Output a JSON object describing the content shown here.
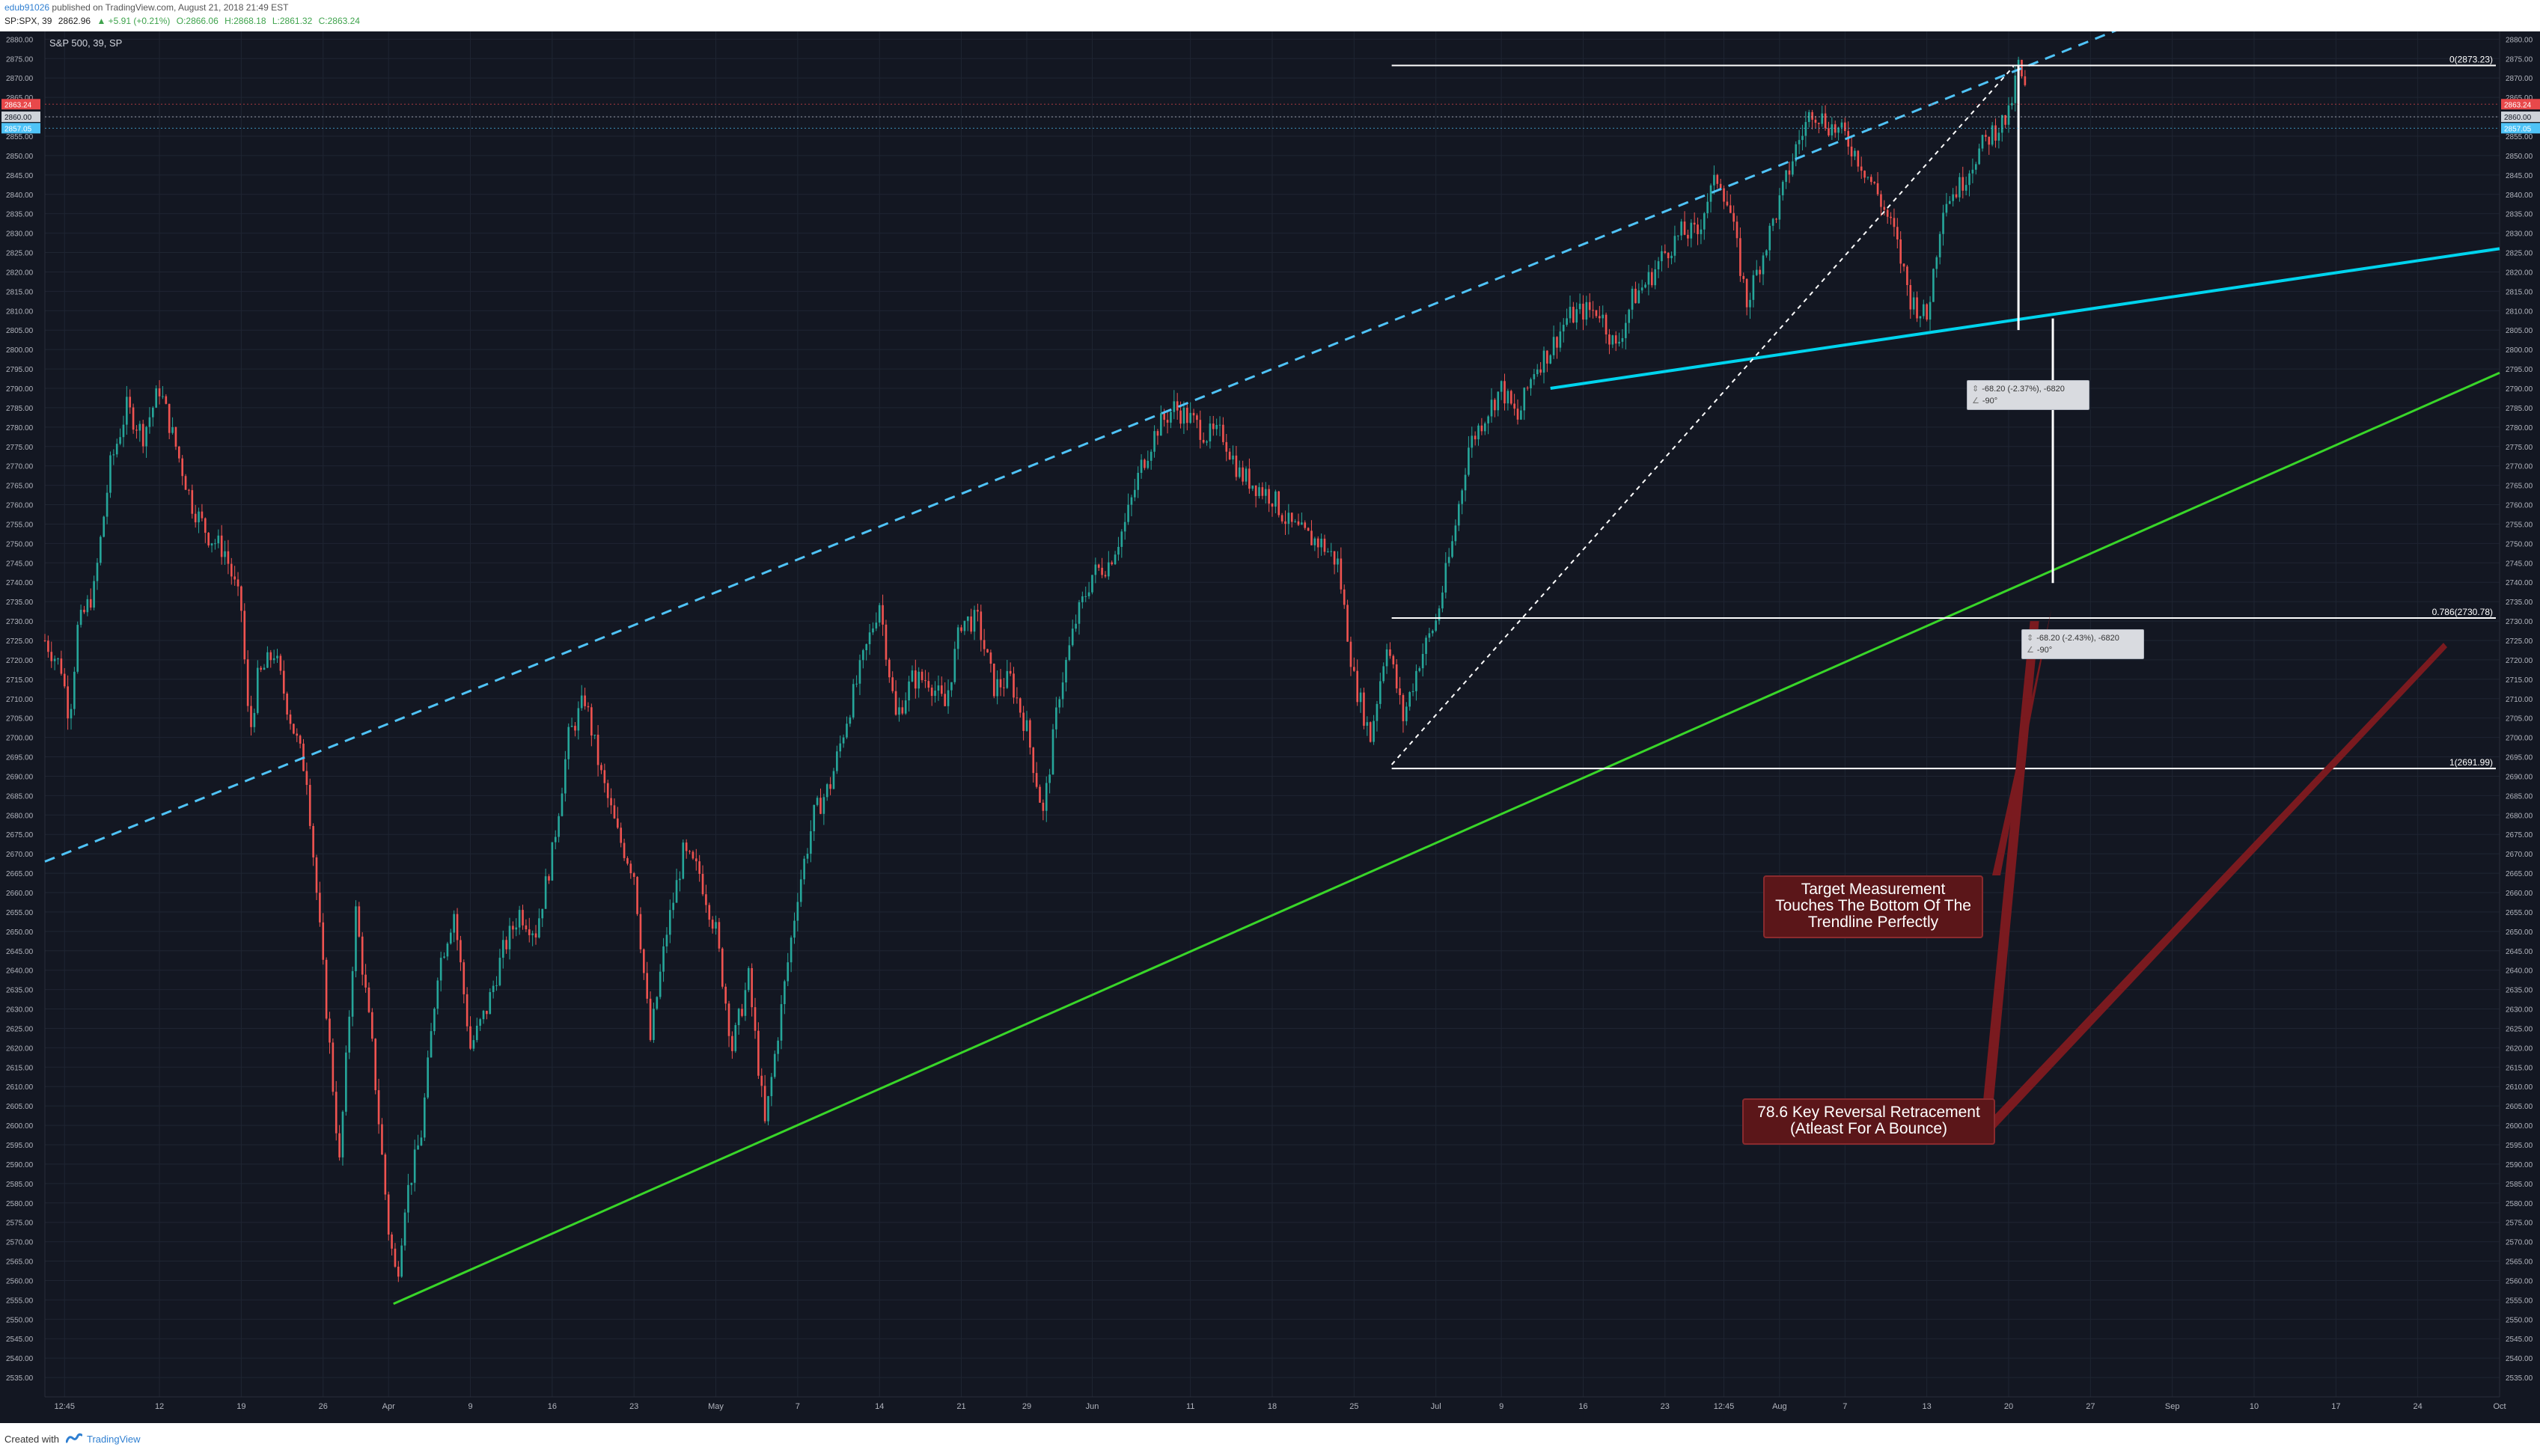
{
  "header": {
    "publisher": "edub91026",
    "published_text": "published on TradingView.com, August 21, 2018 21:49 EST",
    "symbol": "SP:SPX, 39",
    "last": "2862.96",
    "change": "▲ +5.91 (+0.21%)",
    "open": "O:2866.06",
    "high": "H:2868.18",
    "low": "L:2861.32",
    "close": "C:2863.24"
  },
  "footer": {
    "created_with": "Created with",
    "brand": "TradingView"
  },
  "colors": {
    "background": "#131722",
    "grid": "#1f2532",
    "up_candle": "#26a69a",
    "down_candle": "#ef5350",
    "channel_dashed": "#4fc3f7",
    "trendline_cyan": "#00d4ee",
    "trendline_green": "#39d629",
    "callout_arrow": "#7a1a1f",
    "callout_bg": "#5b1619",
    "price_badge_red": "#e8484a",
    "price_badge_gray": "#cfd3da",
    "price_badge_blue": "#4fc3f7"
  },
  "chart_data": {
    "type": "candlestick",
    "title": "S&P 500, 39, SP",
    "xlabel": "",
    "ylabel": "",
    "ylim": [
      2530,
      2882
    ],
    "y_ticks": [
      2535,
      2540,
      2545,
      2550,
      2555,
      2560,
      2565,
      2570,
      2575,
      2580,
      2585,
      2590,
      2595,
      2600,
      2605,
      2610,
      2615,
      2620,
      2625,
      2630,
      2635,
      2640,
      2645,
      2650,
      2655,
      2660,
      2665,
      2670,
      2675,
      2680,
      2685,
      2690,
      2695,
      2700,
      2705,
      2710,
      2715,
      2720,
      2725,
      2730,
      2735,
      2740,
      2745,
      2750,
      2755,
      2760,
      2765,
      2770,
      2775,
      2780,
      2785,
      2790,
      2795,
      2800,
      2805,
      2810,
      2815,
      2820,
      2825,
      2830,
      2835,
      2840,
      2845,
      2850,
      2855,
      2860,
      2865,
      2870,
      2875,
      2880
    ],
    "x_domain": [
      0,
      150
    ],
    "x_ticks": [
      {
        "label": "12:45",
        "t": 1.2
      },
      {
        "label": "12",
        "t": 7
      },
      {
        "label": "19",
        "t": 12
      },
      {
        "label": "26",
        "t": 17
      },
      {
        "label": "Apr",
        "t": 21
      },
      {
        "label": "9",
        "t": 26
      },
      {
        "label": "16",
        "t": 31
      },
      {
        "label": "23",
        "t": 36
      },
      {
        "label": "May",
        "t": 41
      },
      {
        "label": "7",
        "t": 46
      },
      {
        "label": "14",
        "t": 51
      },
      {
        "label": "21",
        "t": 56
      },
      {
        "label": "29",
        "t": 60
      },
      {
        "label": "Jun",
        "t": 64
      },
      {
        "label": "11",
        "t": 70
      },
      {
        "label": "18",
        "t": 75
      },
      {
        "label": "25",
        "t": 80
      },
      {
        "label": "Jul",
        "t": 85
      },
      {
        "label": "9",
        "t": 89
      },
      {
        "label": "16",
        "t": 94
      },
      {
        "label": "23",
        "t": 99
      },
      {
        "label": "12:45",
        "t": 102.6
      },
      {
        "label": "Aug",
        "t": 106
      },
      {
        "label": "7",
        "t": 110
      },
      {
        "label": "13",
        "t": 115
      },
      {
        "label": "20",
        "t": 120
      },
      {
        "label": "27",
        "t": 125
      },
      {
        "label": "Sep",
        "t": 130
      },
      {
        "label": "10",
        "t": 135
      },
      {
        "label": "17",
        "t": 140
      },
      {
        "label": "24",
        "t": 145
      },
      {
        "label": "Oct",
        "t": 150
      }
    ],
    "price_path": [
      [
        0,
        2725
      ],
      [
        1,
        2718
      ],
      [
        1.5,
        2705
      ],
      [
        2,
        2728
      ],
      [
        3,
        2738
      ],
      [
        4,
        2770
      ],
      [
        5,
        2785
      ],
      [
        6,
        2778
      ],
      [
        7,
        2790
      ],
      [
        8,
        2775
      ],
      [
        9,
        2760
      ],
      [
        10,
        2752
      ],
      [
        11,
        2748
      ],
      [
        12,
        2733
      ],
      [
        12.5,
        2700
      ],
      [
        13,
        2715
      ],
      [
        14,
        2722
      ],
      [
        15,
        2705
      ],
      [
        16,
        2690
      ],
      [
        17,
        2640
      ],
      [
        18,
        2590
      ],
      [
        19,
        2655
      ],
      [
        20,
        2620
      ],
      [
        21,
        2573
      ],
      [
        21.5,
        2560
      ],
      [
        22,
        2580
      ],
      [
        23,
        2598
      ],
      [
        24,
        2640
      ],
      [
        25,
        2655
      ],
      [
        26,
        2620
      ],
      [
        27,
        2630
      ],
      [
        28,
        2645
      ],
      [
        29,
        2655
      ],
      [
        30,
        2650
      ],
      [
        31,
        2670
      ],
      [
        32,
        2700
      ],
      [
        33,
        2710
      ],
      [
        34,
        2690
      ],
      [
        35,
        2675
      ],
      [
        36,
        2665
      ],
      [
        37,
        2622
      ],
      [
        38,
        2650
      ],
      [
        39,
        2670
      ],
      [
        40,
        2665
      ],
      [
        41,
        2650
      ],
      [
        42,
        2620
      ],
      [
        43,
        2638
      ],
      [
        44,
        2600
      ],
      [
        45,
        2630
      ],
      [
        46,
        2660
      ],
      [
        47,
        2680
      ],
      [
        48,
        2688
      ],
      [
        49,
        2705
      ],
      [
        50,
        2720
      ],
      [
        51,
        2735
      ],
      [
        52,
        2705
      ],
      [
        53,
        2715
      ],
      [
        54,
        2715
      ],
      [
        55,
        2708
      ],
      [
        56,
        2730
      ],
      [
        57,
        2730
      ],
      [
        58,
        2713
      ],
      [
        59,
        2715
      ],
      [
        60,
        2702
      ],
      [
        61,
        2680
      ],
      [
        62,
        2712
      ],
      [
        63,
        2730
      ],
      [
        64,
        2742
      ],
      [
        65,
        2745
      ],
      [
        66,
        2755
      ],
      [
        67,
        2770
      ],
      [
        68,
        2780
      ],
      [
        69,
        2785
      ],
      [
        70,
        2782
      ],
      [
        71,
        2778
      ],
      [
        72,
        2778
      ],
      [
        73,
        2768
      ],
      [
        74,
        2765
      ],
      [
        75,
        2762
      ],
      [
        76,
        2755
      ],
      [
        77,
        2752
      ],
      [
        78,
        2750
      ],
      [
        79,
        2745
      ],
      [
        80,
        2715
      ],
      [
        81,
        2700
      ],
      [
        82,
        2725
      ],
      [
        83,
        2705
      ],
      [
        84,
        2720
      ],
      [
        85,
        2730
      ],
      [
        86,
        2750
      ],
      [
        87,
        2775
      ],
      [
        88,
        2783
      ],
      [
        89,
        2790
      ],
      [
        90,
        2782
      ],
      [
        91,
        2795
      ],
      [
        92,
        2800
      ],
      [
        93,
        2808
      ],
      [
        94,
        2810
      ],
      [
        95,
        2810
      ],
      [
        96,
        2800
      ],
      [
        97,
        2813
      ],
      [
        98,
        2818
      ],
      [
        99,
        2825
      ],
      [
        100,
        2830
      ],
      [
        101,
        2830
      ],
      [
        101.5,
        2838
      ],
      [
        102.3,
        2845
      ],
      [
        103,
        2835
      ],
      [
        104,
        2812
      ],
      [
        105,
        2825
      ],
      [
        106,
        2838
      ],
      [
        107,
        2852
      ],
      [
        108,
        2862
      ],
      [
        109,
        2858
      ],
      [
        110,
        2855
      ],
      [
        111,
        2848
      ],
      [
        112,
        2840
      ],
      [
        113,
        2830
      ],
      [
        114,
        2813
      ],
      [
        115,
        2808
      ],
      [
        116,
        2838
      ],
      [
        117,
        2842
      ],
      [
        118,
        2850
      ],
      [
        119,
        2856
      ],
      [
        120,
        2860
      ],
      [
        120.6,
        2873.23
      ],
      [
        121.2,
        2863
      ]
    ],
    "fib_retracement": [
      {
        "ratio": "0",
        "value": 2873.23,
        "label": "0(2873.23)"
      },
      {
        "ratio": "0.786",
        "value": 2730.78,
        "label": "0.786(2730.78)"
      },
      {
        "ratio": "1",
        "value": 2691.99,
        "label": "1(2691.99)"
      }
    ],
    "measurements": [
      {
        "text": "-68.20 (-2.37%), -6820",
        "angle": "-90°"
      },
      {
        "text": "-68.20 (-2.43%), -6820",
        "angle": "-90°"
      }
    ],
    "price_badges": [
      {
        "value": 2863.24,
        "label": "2863.24"
      },
      {
        "value": 2860.0,
        "label": "2860.00"
      },
      {
        "value": 2857.05,
        "label": "2857.05"
      }
    ],
    "trendlines": [
      {
        "name": "upper channel (dashed)",
        "from": [
          0,
          2668
        ],
        "to": [
          127,
          2883
        ]
      },
      {
        "name": "cyan trendline",
        "from": [
          92,
          2790
        ],
        "to": [
          150,
          2826
        ]
      },
      {
        "name": "green trendline",
        "from": [
          21.3,
          2554
        ],
        "to": [
          150,
          2794
        ]
      },
      {
        "name": "white dotted",
        "from": [
          82.3,
          2693
        ],
        "to": [
          120.3,
          2873
        ]
      }
    ]
  },
  "annotations": {
    "callout_target": [
      "Target Measurement",
      "Touches The Bottom Of The",
      "Trendline Perfectly"
    ],
    "callout_fib": [
      "78.6 Key Reversal Retracement",
      "(Atleast For A Bounce)"
    ]
  }
}
